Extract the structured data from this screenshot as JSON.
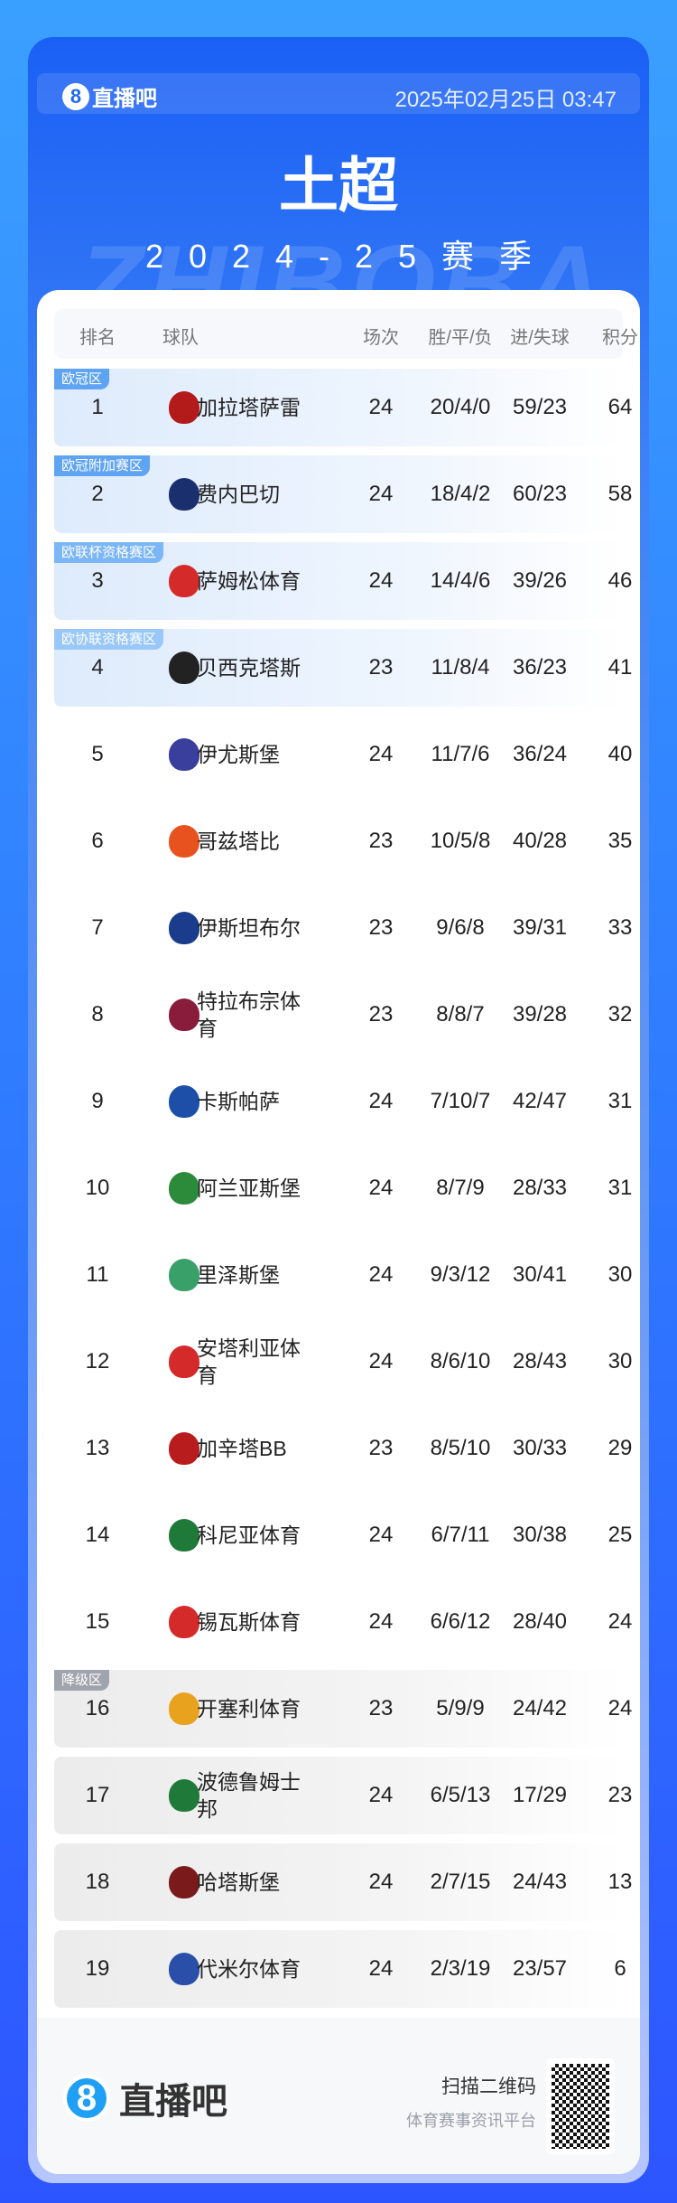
{
  "header": {
    "brand": "直播吧",
    "brand_mark": "8",
    "datetime": "2025年02月25日 03:47",
    "title": "土超",
    "watermark": "ZHIBOBA",
    "season": "2024-25赛季"
  },
  "columns": [
    "排名",
    "球队",
    "场次",
    "胜/平/负",
    "进/失球",
    "积分"
  ],
  "zone_colors": {
    "cl": "#5fa4f2",
    "el": "#7bb6f6",
    "ecl": "#99c8f8",
    "rel": "#9fa4ad"
  },
  "rows": [
    {
      "rank": "1",
      "team": "加拉塔萨雷",
      "played": "24",
      "wdl": "20/4/0",
      "goals": "59/23",
      "pts": "64",
      "zone": "欧冠区",
      "zc": "cl",
      "badge": "#b31b1b"
    },
    {
      "rank": "2",
      "team": "费内巴切",
      "played": "24",
      "wdl": "18/4/2",
      "goals": "60/23",
      "pts": "58",
      "zone": "欧冠附加赛区",
      "zc": "cl",
      "badge": "#1a2f6e"
    },
    {
      "rank": "3",
      "team": "萨姆松体育",
      "played": "24",
      "wdl": "14/4/6",
      "goals": "39/26",
      "pts": "46",
      "zone": "欧联杯资格赛区",
      "zc": "el",
      "badge": "#d42a2a"
    },
    {
      "rank": "4",
      "team": "贝西克塔斯",
      "played": "23",
      "wdl": "11/8/4",
      "goals": "36/23",
      "pts": "41",
      "zone": "欧协联资格赛区",
      "zc": "ecl",
      "badge": "#222222"
    },
    {
      "rank": "5",
      "team": "伊尤斯堡",
      "played": "24",
      "wdl": "11/7/6",
      "goals": "36/24",
      "pts": "40",
      "badge": "#3a3f9e"
    },
    {
      "rank": "6",
      "team": "哥兹塔比",
      "played": "23",
      "wdl": "10/5/8",
      "goals": "40/28",
      "pts": "35",
      "badge": "#e8521e"
    },
    {
      "rank": "7",
      "team": "伊斯坦布尔",
      "played": "23",
      "wdl": "9/6/8",
      "goals": "39/31",
      "pts": "33",
      "badge": "#1b3b8c"
    },
    {
      "rank": "8",
      "team": "特拉布宗体育",
      "played": "23",
      "wdl": "8/8/7",
      "goals": "39/28",
      "pts": "32",
      "badge": "#8a1c3b"
    },
    {
      "rank": "9",
      "team": "卡斯帕萨",
      "played": "24",
      "wdl": "7/10/7",
      "goals": "42/47",
      "pts": "31",
      "badge": "#1e4fa8"
    },
    {
      "rank": "10",
      "team": "阿兰亚斯堡",
      "played": "24",
      "wdl": "8/7/9",
      "goals": "28/33",
      "pts": "31",
      "badge": "#2c8a3b"
    },
    {
      "rank": "11",
      "team": "里泽斯堡",
      "played": "24",
      "wdl": "9/3/12",
      "goals": "30/41",
      "pts": "30",
      "badge": "#3aa06a"
    },
    {
      "rank": "12",
      "team": "安塔利亚体育",
      "played": "24",
      "wdl": "8/6/10",
      "goals": "28/43",
      "pts": "30",
      "badge": "#d42a2a"
    },
    {
      "rank": "13",
      "team": "加辛塔BB",
      "played": "23",
      "wdl": "8/5/10",
      "goals": "30/33",
      "pts": "29",
      "badge": "#b81c1c"
    },
    {
      "rank": "14",
      "team": "科尼亚体育",
      "played": "24",
      "wdl": "6/7/11",
      "goals": "30/38",
      "pts": "25",
      "badge": "#1f7a3a"
    },
    {
      "rank": "15",
      "team": "锡瓦斯体育",
      "played": "24",
      "wdl": "6/6/12",
      "goals": "28/40",
      "pts": "24",
      "badge": "#d42a2a"
    },
    {
      "rank": "16",
      "team": "开塞利体育",
      "played": "23",
      "wdl": "5/9/9",
      "goals": "24/42",
      "pts": "24",
      "zone": "降级区",
      "zc": "rel",
      "badge": "#e8a21e"
    },
    {
      "rank": "17",
      "team": "波德鲁姆士邦",
      "played": "24",
      "wdl": "6/5/13",
      "goals": "17/29",
      "pts": "23",
      "zc": "rel",
      "badge": "#1f7a3a"
    },
    {
      "rank": "18",
      "team": "哈塔斯堡",
      "played": "24",
      "wdl": "2/7/15",
      "goals": "24/43",
      "pts": "13",
      "zc": "rel",
      "badge": "#7a1a1a"
    },
    {
      "rank": "19",
      "team": "代米尔体育",
      "played": "24",
      "wdl": "2/3/19",
      "goals": "23/57",
      "pts": "6",
      "zc": "rel",
      "badge": "#2a4fa8"
    }
  ],
  "footer": {
    "brand": "直播吧",
    "brand_mark": "8",
    "scan": "扫描二维码",
    "tagline": "体育赛事资讯平台"
  }
}
